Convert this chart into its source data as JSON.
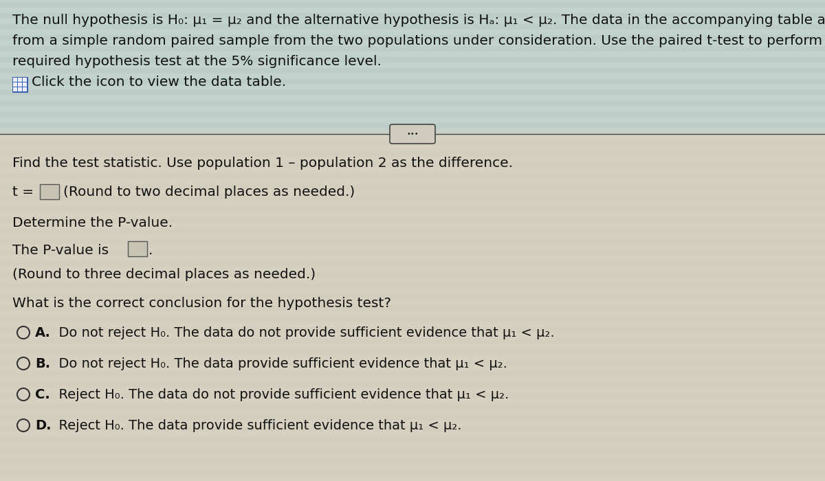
{
  "bg_color_top": "#c8d8c8",
  "bg_color_bottom": "#d8d4c8",
  "divider_color": "#444444",
  "text_color": "#111111",
  "title_line1": "The null hypothesis is H₀: μ₁ = μ₂ and the alternative hypothesis is Hₐ: μ₁ < μ₂. The data in the accompanying table are",
  "title_line2": "from a simple random paired sample from the two populations under consideration. Use the paired t-test to perform the",
  "title_line3": "required hypothesis test at the 5% significance level.",
  "find_stat": "Find the test statistic. Use population 1 – population 2 as the difference.",
  "t_eq": "t =",
  "t_suffix": "(Round to two decimal places as needed.)",
  "determine_pval": "Determine the P-value.",
  "pval_prefix": "The P-value is",
  "pval_suffix": ".",
  "pval_round": "(Round to three decimal places as needed.)",
  "conclusion_q": "What is the correct conclusion for the hypothesis test?",
  "option_A_bold": "A.",
  "option_A_rest": "  Do not reject H₀. The data do not provide sufficient evidence that μ₁ < μ₂.",
  "option_B_bold": "B.",
  "option_B_rest": "  Do not reject H₀. The data provide sufficient evidence that μ₁ < μ₂.",
  "option_C_bold": "C.",
  "option_C_rest": "  Reject H₀. The data do not provide sufficient evidence that μ₁ < μ₂.",
  "option_D_bold": "D.",
  "option_D_rest": "  Reject H₀. The data provide sufficient evidence that μ₁ < μ₂.",
  "font_size_main": 14.5,
  "font_size_options": 14.0,
  "icon_color_blue": "#2255cc",
  "icon_color_bg": "#3366dd"
}
